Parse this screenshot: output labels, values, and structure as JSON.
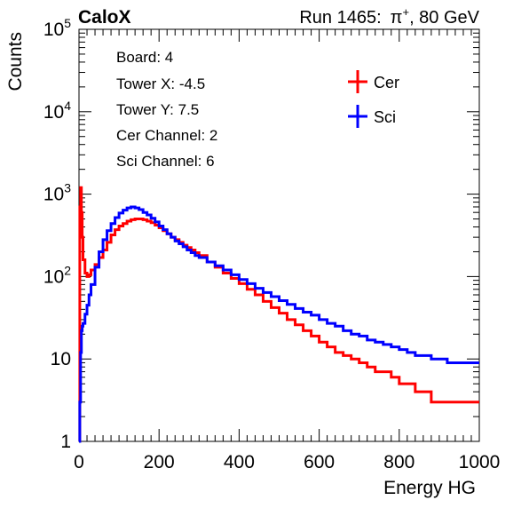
{
  "header": {
    "brand": "CaloX",
    "run_label": "Run 1465:",
    "beam_particle": "π",
    "beam_charge": "+",
    "beam_energy": ", 80 GeV"
  },
  "info_box": {
    "lines": [
      "Board: 4",
      "Tower X: -4.5",
      "Tower Y: 7.5",
      "Cer Channel: 2",
      "Sci Channel: 6"
    ]
  },
  "chart_data": {
    "type": "line",
    "xlabel": "Energy HG",
    "ylabel": "Counts",
    "xlim": [
      0,
      1000
    ],
    "ylim": [
      1,
      100000
    ],
    "y_scale": "log",
    "x_ticks": [
      0,
      200,
      400,
      600,
      800,
      1000
    ],
    "y_ticks": [
      {
        "value": 1,
        "base": "1",
        "exp": ""
      },
      {
        "value": 10,
        "base": "10",
        "exp": ""
      },
      {
        "value": 100,
        "base": "10",
        "exp": "2"
      },
      {
        "value": 1000,
        "base": "10",
        "exp": "3"
      },
      {
        "value": 10000,
        "base": "10",
        "exp": "4"
      },
      {
        "value": 100000,
        "base": "10",
        "exp": "5"
      }
    ],
    "grid": false,
    "legend_position": "top-right",
    "series": [
      {
        "name": "Cer",
        "color": "#ff0000",
        "x": [
          0,
          2,
          4,
          6,
          8,
          10,
          15,
          20,
          25,
          30,
          40,
          50,
          60,
          70,
          80,
          90,
          100,
          110,
          120,
          130,
          140,
          150,
          160,
          170,
          180,
          190,
          200,
          210,
          220,
          230,
          240,
          250,
          260,
          270,
          280,
          290,
          300,
          320,
          340,
          360,
          380,
          400,
          420,
          440,
          460,
          480,
          500,
          520,
          540,
          560,
          580,
          600,
          620,
          640,
          660,
          680,
          700,
          720,
          740,
          760,
          780,
          800,
          820,
          840,
          860,
          880,
          900,
          920,
          940,
          960,
          980,
          1000
        ],
        "y": [
          1,
          700,
          1200,
          600,
          300,
          160,
          110,
          100,
          105,
          120,
          140,
          170,
          210,
          260,
          320,
          370,
          410,
          440,
          470,
          490,
          500,
          500,
          490,
          470,
          450,
          420,
          390,
          360,
          330,
          300,
          280,
          260,
          240,
          225,
          210,
          195,
          180,
          150,
          130,
          110,
          95,
          82,
          70,
          60,
          50,
          42,
          36,
          30,
          26,
          22,
          19,
          16,
          14,
          12,
          11,
          10,
          9,
          8,
          7,
          7,
          6,
          5,
          5,
          4,
          4,
          3,
          3,
          3,
          3,
          3,
          3,
          3
        ]
      },
      {
        "name": "Sci",
        "color": "#0000ff",
        "x": [
          0,
          2,
          4,
          6,
          8,
          10,
          15,
          20,
          25,
          30,
          40,
          50,
          60,
          70,
          80,
          90,
          100,
          110,
          120,
          130,
          140,
          150,
          160,
          170,
          180,
          190,
          200,
          210,
          220,
          230,
          240,
          250,
          260,
          270,
          280,
          290,
          300,
          320,
          340,
          360,
          380,
          400,
          420,
          440,
          460,
          480,
          500,
          520,
          540,
          560,
          580,
          600,
          620,
          640,
          660,
          680,
          700,
          720,
          740,
          760,
          780,
          800,
          820,
          840,
          860,
          880,
          900,
          920,
          940,
          960,
          980,
          1000
        ],
        "y": [
          1,
          3,
          12,
          22,
          25,
          27,
          35,
          45,
          60,
          80,
          130,
          200,
          280,
          360,
          440,
          520,
          590,
          640,
          680,
          700,
          680,
          650,
          600,
          560,
          510,
          460,
          410,
          370,
          330,
          300,
          270,
          250,
          230,
          210,
          195,
          180,
          170,
          150,
          135,
          120,
          105,
          92,
          82,
          72,
          64,
          57,
          51,
          46,
          41,
          37,
          34,
          30,
          27,
          25,
          22,
          20,
          19,
          17,
          16,
          15,
          14,
          13,
          12,
          11,
          11,
          10,
          10,
          9,
          9,
          9,
          9,
          9
        ]
      }
    ]
  }
}
